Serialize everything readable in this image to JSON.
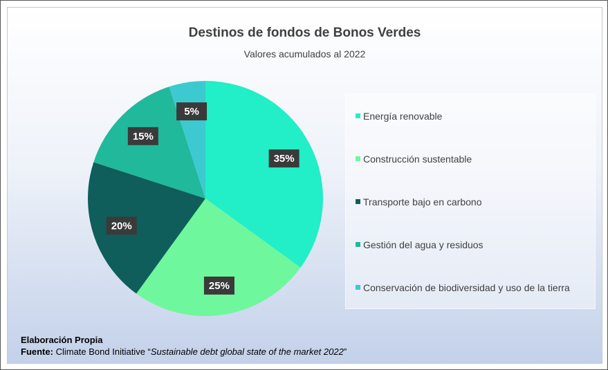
{
  "chart_data": {
    "type": "pie",
    "title": "Destinos de fondos de Bonos Verdes",
    "subtitle": "Valores acumulados al 2022",
    "categories": [
      "Energía renovable",
      "Construcción sustentable",
      "Transporte bajo en carbono",
      "Gestión del agua y residuos",
      "Conservación de biodiversidad y uso de la tierra"
    ],
    "values": [
      35,
      25,
      20,
      15,
      5
    ],
    "value_labels": [
      "35%",
      "25%",
      "20%",
      "15%",
      "5%"
    ],
    "colors": [
      "#22eec8",
      "#6ef79c",
      "#0f5e5b",
      "#20b99b",
      "#3ccad0"
    ],
    "legend": "right",
    "footer": {
      "credit": "Elaboración Propia",
      "source_label": "Fuente:",
      "source": "Climate Bond Initiative “",
      "source_title": "Sustainable debt global state of the market 2022",
      "source_close": "”"
    }
  }
}
